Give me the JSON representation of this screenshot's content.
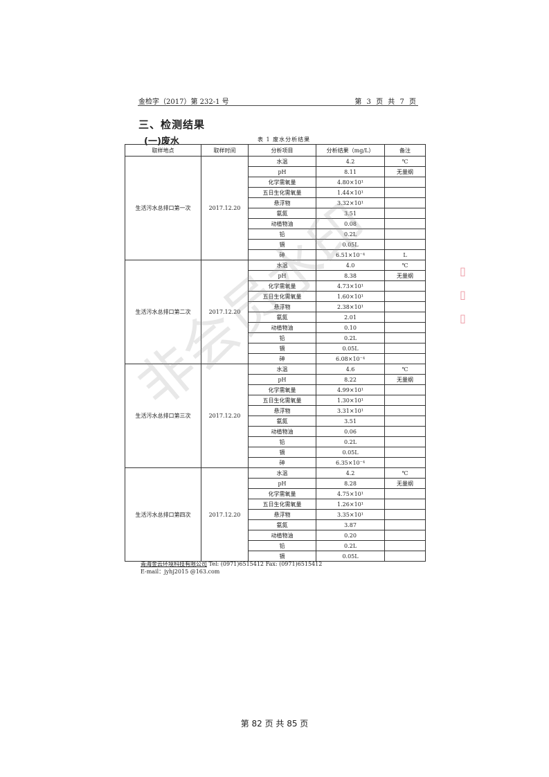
{
  "header": {
    "report_no": "金检字（2017）第 232-1 号",
    "page_info": "第 3 页 共 7 页"
  },
  "section_title": "三、检测结果",
  "subsection_title": "(一)废水",
  "table_caption": "表 1 废水分析结果",
  "table": {
    "headers": [
      "取样地点",
      "取样时间",
      "分析项目",
      "分析结果（mg/L）",
      "备注"
    ],
    "groups": [
      {
        "location": "生活污水总排口第一次",
        "time": "2017.12.20",
        "rows": [
          [
            "水温",
            "4.2",
            "℃"
          ],
          [
            "pH",
            "8.11",
            "无量纲"
          ],
          [
            "化学需氧量",
            "4.80×10¹",
            ""
          ],
          [
            "五日生化需氧量",
            "1.44×10¹",
            ""
          ],
          [
            "悬浮物",
            "3.32×10¹",
            ""
          ],
          [
            "氨氮",
            "3.51",
            ""
          ],
          [
            "动植物油",
            "0.08",
            ""
          ],
          [
            "铅",
            "0.2L",
            ""
          ],
          [
            "镉",
            "0.05L",
            ""
          ],
          [
            "砷",
            "6.51×10⁻⁴",
            "L"
          ]
        ]
      },
      {
        "location": "生活污水总排口第二次",
        "time": "2017.12.20",
        "rows": [
          [
            "水温",
            "4.0",
            "℃"
          ],
          [
            "pH",
            "8.38",
            "无量纲"
          ],
          [
            "化学需氧量",
            "4.73×10¹",
            ""
          ],
          [
            "五日生化需氧量",
            "1.60×10¹",
            ""
          ],
          [
            "悬浮物",
            "2.38×10¹",
            ""
          ],
          [
            "氨氮",
            "2.01",
            ""
          ],
          [
            "动植物油",
            "0.10",
            ""
          ],
          [
            "铅",
            "0.2L",
            ""
          ],
          [
            "镉",
            "0.05L",
            ""
          ],
          [
            "砷",
            "6.08×10⁻⁴",
            ""
          ]
        ]
      },
      {
        "location": "生活污水总排口第三次",
        "time": "2017.12.20",
        "rows": [
          [
            "水温",
            "4.6",
            "℃"
          ],
          [
            "pH",
            "8.22",
            "无量纲"
          ],
          [
            "化学需氧量",
            "4.99×10¹",
            ""
          ],
          [
            "五日生化需氧量",
            "1.30×10¹",
            ""
          ],
          [
            "悬浮物",
            "3.31×10¹",
            ""
          ],
          [
            "氨氮",
            "3.51",
            ""
          ],
          [
            "动植物油",
            "0.06",
            ""
          ],
          [
            "铅",
            "0.2L",
            ""
          ],
          [
            "镉",
            "0.05L",
            ""
          ],
          [
            "砷",
            "6.35×10⁻⁴",
            ""
          ]
        ]
      },
      {
        "location": "生活污水总排口第四次",
        "time": "2017.12.20",
        "rows": [
          [
            "水温",
            "4.2",
            "℃"
          ],
          [
            "pH",
            "8.28",
            "无量纲"
          ],
          [
            "化学需氧量",
            "4.75×10¹",
            ""
          ],
          [
            "五日生化需氧量",
            "1.26×10¹",
            ""
          ],
          [
            "悬浮物",
            "3.35×10¹",
            ""
          ],
          [
            "氨氮",
            "3.87",
            ""
          ],
          [
            "动植物油",
            "0.20",
            ""
          ],
          [
            "铅",
            "0.2L",
            ""
          ],
          [
            "镉",
            "0.05L",
            ""
          ]
        ]
      }
    ]
  },
  "footer": {
    "company": "青海金云环境科技有限公司",
    "contact": " Tel:  (0971)6515412   Fax:  (0971)6515412",
    "email": "E-mail：jyhj2015 @163.com"
  },
  "page_number": "第 82 页 共 85 页",
  "watermark": "非会员水印",
  "stamp_color": "#dc3c50"
}
